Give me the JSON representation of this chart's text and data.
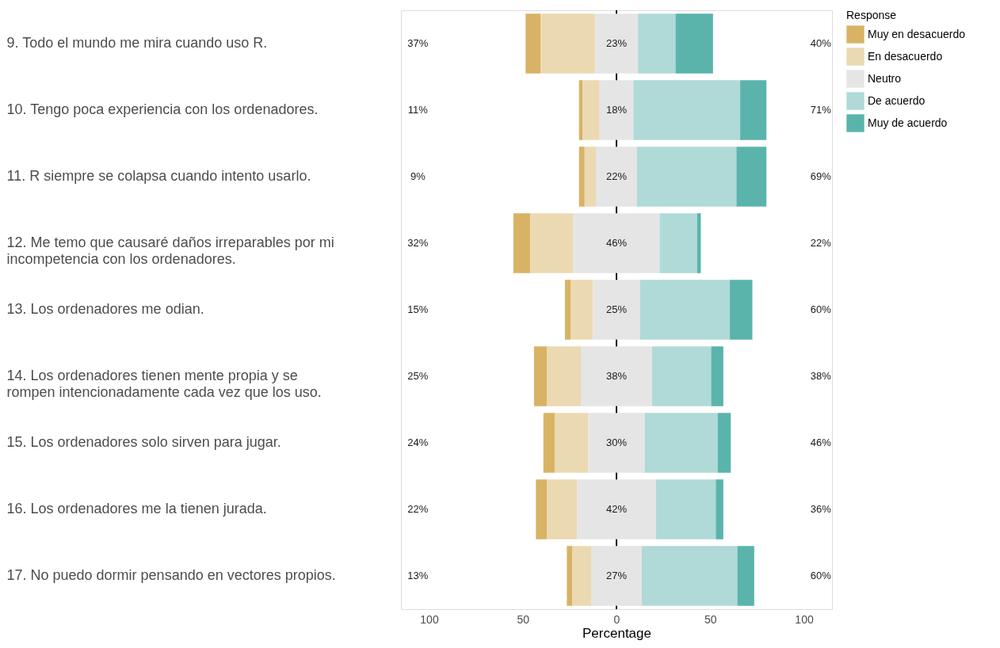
{
  "chart_data": {
    "type": "bar",
    "orientation": "horizontal",
    "categories": [
      "9. Todo el mundo me mira cuando uso R.",
      "10. Tengo poca experiencia con los ordenadores.",
      "11. R siempre se colapsa cuando intento usarlo.",
      "12. Me temo que causaré daños irreparables por mi incompetencia con los ordenadores.",
      "13. Los ordenadores me odian.",
      "14. Los ordenadores tienen mente propia y se rompen intencionadamente cada vez que los uso.",
      "15. Los ordenadores solo sirven para jugar.",
      "16. Los ordenadores me la tienen jurada.",
      "17. No puedo dormir pensando en vectores propios."
    ],
    "series": [
      {
        "name": "Muy en desacuerdo",
        "color": "#d8b365",
        "base": [
          -48.5,
          -20,
          -20,
          -55,
          -27.5,
          -44,
          -39,
          -43,
          -26.5
        ],
        "values": [
          8,
          2,
          3,
          9,
          3,
          7,
          6,
          6,
          3
        ]
      },
      {
        "name": "En desacuerdo",
        "color": "#ebd9b2",
        "base": [
          -40.5,
          -18,
          -17,
          -46,
          -24.5,
          -37,
          -33,
          -37,
          -23.5
        ],
        "values": [
          29,
          9,
          6,
          23,
          12,
          18,
          18,
          16,
          10
        ]
      },
      {
        "name": "Neutro",
        "color": "#e5e5e5",
        "base": [
          -11.5,
          -9,
          -11,
          -23,
          -12.5,
          -19,
          -15,
          -21,
          -13.5
        ],
        "values": [
          23,
          18,
          22,
          46,
          25,
          38,
          30,
          42,
          27
        ],
        "value_labels": [
          "23%",
          "18%",
          "22%",
          "46%",
          "25%",
          "38%",
          "30%",
          "42%",
          "27%"
        ]
      },
      {
        "name": "De acuerdo",
        "color": "#afdad7",
        "base": [
          11.5,
          9,
          11,
          23,
          12.5,
          19,
          15,
          21,
          13.5
        ],
        "values": [
          20,
          57,
          53,
          20,
          48,
          31.5,
          39,
          32,
          51
        ]
      },
      {
        "name": "Muy de acuerdo",
        "color": "#5ab4ac",
        "base": [
          31.5,
          66,
          64,
          43,
          60.5,
          50.5,
          54,
          53,
          64.5
        ],
        "values": [
          20,
          14,
          16,
          2,
          12,
          6.5,
          7,
          4,
          9
        ]
      }
    ],
    "xlabel": "Percentage",
    "legend_title": "Response",
    "legend": "right",
    "xlim": [
      -115,
      115
    ],
    "xticks": [
      {
        "value": -100,
        "label": "100"
      },
      {
        "value": -50,
        "label": "50"
      },
      0,
      50,
      100
    ],
    "ref_lines": [
      {
        "axis": "x",
        "value": 0,
        "color": "#000000"
      }
    ],
    "annotations": [
      "37%",
      "40%",
      "11%",
      "71%",
      "9%",
      "69%",
      "32%",
      "22%",
      "15%",
      "60%",
      "25%",
      "38%",
      "24%",
      "46%",
      "22%",
      "36%",
      "13%",
      "60%"
    ]
  }
}
